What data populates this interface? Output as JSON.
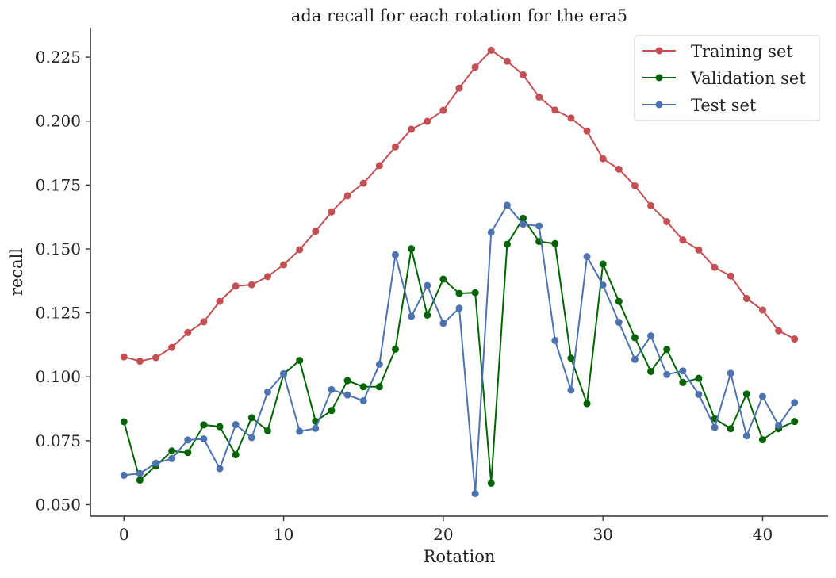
{
  "chart_data": {
    "type": "line",
    "title": "ada recall for each rotation for the era5",
    "xlabel": "Rotation",
    "ylabel": "recall",
    "xlim": [
      -2.1,
      44.1
    ],
    "ylim": [
      0.0455,
      0.2365
    ],
    "xticks": [
      0,
      10,
      20,
      30,
      40
    ],
    "xtick_labels": [
      "0",
      "10",
      "20",
      "30",
      "40"
    ],
    "yticks": [
      0.05,
      0.075,
      0.1,
      0.125,
      0.15,
      0.175,
      0.2,
      0.225
    ],
    "ytick_labels": [
      "0.050",
      "0.075",
      "0.100",
      "0.125",
      "0.150",
      "0.175",
      "0.200",
      "0.225"
    ],
    "grid": false,
    "legend_position": "top-right",
    "x": [
      0,
      1,
      2,
      3,
      4,
      5,
      6,
      7,
      8,
      9,
      10,
      11,
      12,
      13,
      14,
      15,
      16,
      17,
      18,
      19,
      20,
      21,
      22,
      23,
      24,
      25,
      26,
      27,
      28,
      29,
      30,
      31,
      32,
      33,
      34,
      35,
      36,
      37,
      38,
      39,
      40,
      41,
      42
    ],
    "series": [
      {
        "name": "Training set",
        "color": "#c44e52",
        "values": [
          0.1078,
          0.1061,
          0.1075,
          0.1115,
          0.1173,
          0.1215,
          0.1295,
          0.1355,
          0.136,
          0.1392,
          0.1438,
          0.1497,
          0.1569,
          0.1645,
          0.1708,
          0.1757,
          0.1826,
          0.1899,
          0.1968,
          0.1999,
          0.2042,
          0.2129,
          0.2211,
          0.2277,
          0.2234,
          0.2181,
          0.2094,
          0.2043,
          0.2012,
          0.1961,
          0.1853,
          0.1812,
          0.1747,
          0.1669,
          0.1607,
          0.1535,
          0.1496,
          0.1428,
          0.1394,
          0.1306,
          0.1261,
          0.118,
          0.1148
        ]
      },
      {
        "name": "Validation set",
        "color": "#006400",
        "values": [
          0.0824,
          0.0596,
          0.0651,
          0.071,
          0.0704,
          0.0812,
          0.0805,
          0.0695,
          0.084,
          0.0789,
          0.1011,
          0.1064,
          0.0826,
          0.0868,
          0.0985,
          0.0961,
          0.0961,
          0.1108,
          0.1501,
          0.1241,
          0.1382,
          0.1326,
          0.1329,
          0.0584,
          0.1518,
          0.162,
          0.1529,
          0.1521,
          0.1073,
          0.0895,
          0.1441,
          0.1295,
          0.1153,
          0.1021,
          0.1107,
          0.0978,
          0.0994,
          0.0836,
          0.0797,
          0.0933,
          0.0754,
          0.0797,
          0.0825
        ]
      },
      {
        "name": "Test set",
        "color": "#4c72b0",
        "values": [
          0.0615,
          0.0622,
          0.0662,
          0.068,
          0.0753,
          0.0757,
          0.0641,
          0.0813,
          0.0762,
          0.0941,
          0.1012,
          0.0787,
          0.0798,
          0.095,
          0.0929,
          0.0906,
          0.1049,
          0.1477,
          0.1236,
          0.1357,
          0.1209,
          0.1268,
          0.0543,
          0.1565,
          0.1671,
          0.1597,
          0.159,
          0.1142,
          0.0948,
          0.147,
          0.1359,
          0.1213,
          0.1068,
          0.116,
          0.1009,
          0.1023,
          0.0931,
          0.0802,
          0.1014,
          0.0769,
          0.0923,
          0.081,
          0.0899
        ]
      }
    ]
  }
}
